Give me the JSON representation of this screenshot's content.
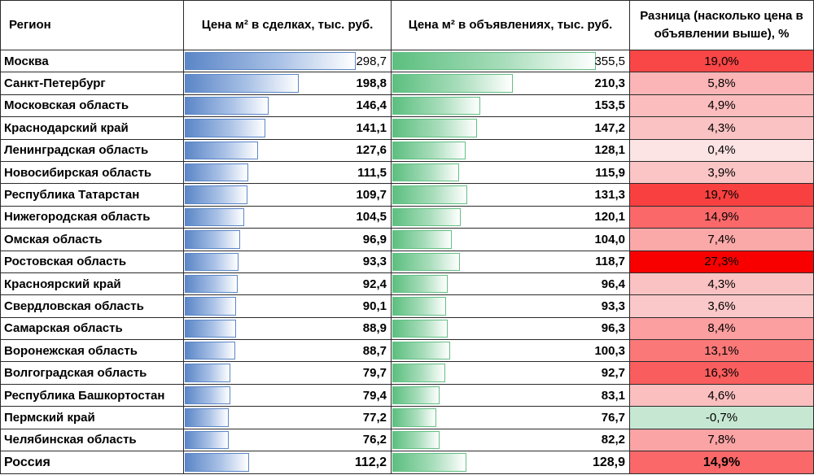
{
  "headers": {
    "region": "Регион",
    "deals": "Цена м² в сделках, тыс. руб.",
    "ads": "Цена м² в объявлениях, тыс. руб.",
    "diff": "Разница (насколько цена в объявлении выше), %"
  },
  "scale_max": 355.5,
  "rows": [
    {
      "region": "Москва",
      "deals": "298,7",
      "ads": "355,5",
      "diff": "19,0%",
      "deals_num": 298.7,
      "ads_num": 355.5,
      "diff_num": 19.0
    },
    {
      "region": "Санкт-Петербург",
      "deals": "198,8",
      "ads": "210,3",
      "diff": "5,8%",
      "deals_num": 198.8,
      "ads_num": 210.3,
      "diff_num": 5.8
    },
    {
      "region": "Московская область",
      "deals": "146,4",
      "ads": "153,5",
      "diff": "4,9%",
      "deals_num": 146.4,
      "ads_num": 153.5,
      "diff_num": 4.9
    },
    {
      "region": "Краснодарский край",
      "deals": "141,1",
      "ads": "147,2",
      "diff": "4,3%",
      "deals_num": 141.1,
      "ads_num": 147.2,
      "diff_num": 4.3
    },
    {
      "region": "Ленинградская область",
      "deals": "127,6",
      "ads": "128,1",
      "diff": "0,4%",
      "deals_num": 127.6,
      "ads_num": 128.1,
      "diff_num": 0.4
    },
    {
      "region": "Новосибирская область",
      "deals": "111,5",
      "ads": "115,9",
      "diff": "3,9%",
      "deals_num": 111.5,
      "ads_num": 115.9,
      "diff_num": 3.9
    },
    {
      "region": "Республика Татарстан",
      "deals": "109,7",
      "ads": "131,3",
      "diff": "19,7%",
      "deals_num": 109.7,
      "ads_num": 131.3,
      "diff_num": 19.7
    },
    {
      "region": "Нижегородская область",
      "deals": "104,5",
      "ads": "120,1",
      "diff": "14,9%",
      "deals_num": 104.5,
      "ads_num": 120.1,
      "diff_num": 14.9
    },
    {
      "region": "Омская область",
      "deals": "96,9",
      "ads": "104,0",
      "diff": "7,4%",
      "deals_num": 96.9,
      "ads_num": 104.0,
      "diff_num": 7.4
    },
    {
      "region": "Ростовская область",
      "deals": "93,3",
      "ads": "118,7",
      "diff": "27,3%",
      "deals_num": 93.3,
      "ads_num": 118.7,
      "diff_num": 27.3
    },
    {
      "region": "Красноярский край",
      "deals": "92,4",
      "ads": "96,4",
      "diff": "4,3%",
      "deals_num": 92.4,
      "ads_num": 96.4,
      "diff_num": 4.3
    },
    {
      "region": "Свердловская область",
      "deals": "90,1",
      "ads": "93,3",
      "diff": "3,6%",
      "deals_num": 90.1,
      "ads_num": 93.3,
      "diff_num": 3.6
    },
    {
      "region": "Самарская область",
      "deals": "88,9",
      "ads": "96,3",
      "diff": "8,4%",
      "deals_num": 88.9,
      "ads_num": 96.3,
      "diff_num": 8.4
    },
    {
      "region": "Воронежская область",
      "deals": "88,7",
      "ads": "100,3",
      "diff": "13,1%",
      "deals_num": 88.7,
      "ads_num": 100.3,
      "diff_num": 13.1
    },
    {
      "region": "Волгоградская область",
      "deals": "79,7",
      "ads": "92,7",
      "diff": "16,3%",
      "deals_num": 79.7,
      "ads_num": 92.7,
      "diff_num": 16.3
    },
    {
      "region": "Республика Башкортостан",
      "deals": "79,4",
      "ads": "83,1",
      "diff": "4,6%",
      "deals_num": 79.4,
      "ads_num": 83.1,
      "diff_num": 4.6
    },
    {
      "region": "Пермский край",
      "deals": "77,2",
      "ads": "76,7",
      "diff": "-0,7%",
      "deals_num": 77.2,
      "ads_num": 76.7,
      "diff_num": -0.7
    },
    {
      "region": "Челябинская область",
      "deals": "76,2",
      "ads": "82,2",
      "diff": "7,8%",
      "deals_num": 76.2,
      "ads_num": 82.2,
      "diff_num": 7.8
    }
  ],
  "total": {
    "region": "Россия",
    "deals": "112,2",
    "ads": "128,9",
    "diff": "14,9%",
    "deals_num": 112.2,
    "ads_num": 128.9,
    "diff_num": 14.9
  },
  "colors": {
    "deals_bar": "#5b86c7",
    "ads_bar": "#5cbf7f",
    "diff_positive_strong": "#f8696b",
    "diff_negative": "#c6e8d2"
  }
}
